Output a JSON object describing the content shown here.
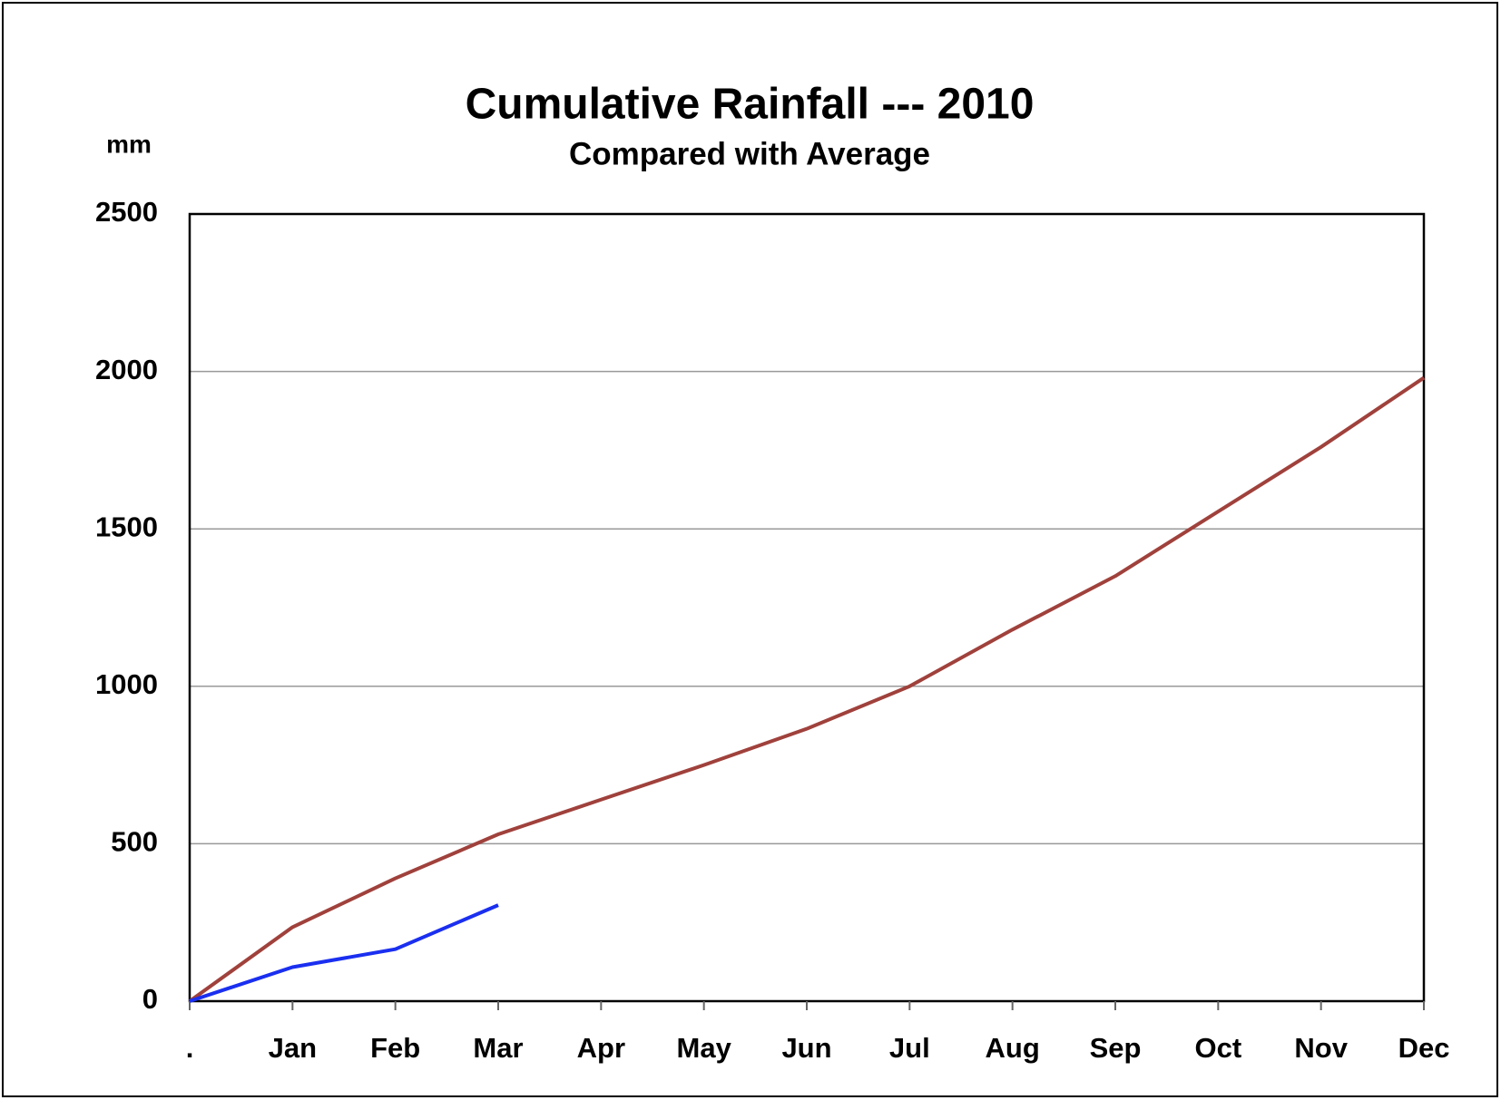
{
  "chart_data": {
    "type": "line",
    "title": "Cumulative Rainfall --- 2010",
    "subtitle": "Compared with Average",
    "y_label": "mm",
    "categories": [
      ".",
      "Jan",
      "Feb",
      "Mar",
      "Apr",
      "May",
      "Jun",
      "Jul",
      "Aug",
      "Sep",
      "Oct",
      "Nov",
      "Dec"
    ],
    "series": [
      {
        "color": "#a0413c",
        "values": [
          0,
          235,
          390,
          530,
          640,
          750,
          865,
          1000,
          1180,
          1350,
          1555,
          1760,
          1980
        ]
      },
      {
        "color": "#1a2ff0",
        "values": [
          0,
          108,
          165,
          305,
          null,
          null,
          null,
          null,
          null,
          null,
          null,
          null,
          null
        ]
      }
    ],
    "ylim": [
      0,
      2500
    ],
    "yticks": [
      0,
      500,
      1000,
      1500,
      2000,
      2500
    ],
    "grid": true
  }
}
